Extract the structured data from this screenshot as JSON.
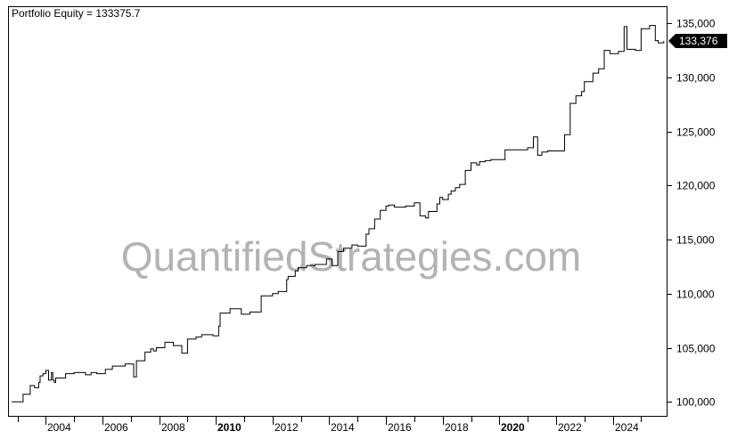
{
  "chart_data": {
    "type": "line",
    "title": "Portfolio Equity = 133375.7",
    "watermark": "QuantifiedStrategies.com",
    "last_value": 133375.7,
    "last_value_label": "133,376",
    "ylim": [
      98700,
      136500
    ],
    "xlim": [
      2002.7,
      2025.9
    ],
    "y_ticks": [
      {
        "value": 100000,
        "label": "100,000"
      },
      {
        "value": 105000,
        "label": "105,000"
      },
      {
        "value": 110000,
        "label": "110,000"
      },
      {
        "value": 115000,
        "label": "115,000"
      },
      {
        "value": 120000,
        "label": "120,000"
      },
      {
        "value": 125000,
        "label": "125,000"
      },
      {
        "value": 130000,
        "label": "130,000"
      },
      {
        "value": 135000,
        "label": "135,000"
      }
    ],
    "x_ticks": [
      {
        "value": 2004,
        "label": "2004",
        "bold": false
      },
      {
        "value": 2006,
        "label": "2006",
        "bold": false
      },
      {
        "value": 2008,
        "label": "2008",
        "bold": false
      },
      {
        "value": 2010,
        "label": "2010",
        "bold": true
      },
      {
        "value": 2012,
        "label": "2012",
        "bold": false
      },
      {
        "value": 2014,
        "label": "2014",
        "bold": false
      },
      {
        "value": 2016,
        "label": "2016",
        "bold": false
      },
      {
        "value": 2018,
        "label": "2018",
        "bold": false
      },
      {
        "value": 2020,
        "label": "2020",
        "bold": true
      },
      {
        "value": 2022,
        "label": "2022",
        "bold": false
      },
      {
        "value": 2024,
        "label": "2024",
        "bold": false
      }
    ],
    "series": [
      {
        "x": [
          2002.8,
          2003.2,
          2003.2,
          2003.45,
          2003.6,
          2003.75,
          2003.8,
          2003.9,
          2004.0,
          2004.1,
          2004.2,
          2004.25,
          2004.3,
          2004.35,
          2004.7,
          2005.0,
          2005.4,
          2005.6,
          2005.8,
          2006.1,
          2006.35,
          2006.8,
          2007.1,
          2007.2,
          2007.5,
          2007.7,
          2007.8,
          2007.9,
          2008.2,
          2008.5,
          2008.8,
          2009.0,
          2009.3,
          2009.5,
          2009.9,
          2010.1,
          2010.15,
          2010.5,
          2010.9,
          2011.2,
          2011.6,
          2012.0,
          2012.2,
          2012.5,
          2012.55,
          2012.8,
          2012.9,
          2013.2,
          2013.5,
          2013.6,
          2013.9,
          2014.1,
          2014.3,
          2014.5,
          2014.8,
          2015.0,
          2015.3,
          2015.4,
          2015.6,
          2015.8,
          2016.0,
          2016.1,
          2016.3,
          2016.4,
          2016.7,
          2017.0,
          2017.2,
          2017.4,
          2017.5,
          2017.8,
          2017.9,
          2018.0,
          2018.2,
          2018.3,
          2018.45,
          2018.6,
          2018.8,
          2019.0,
          2019.2,
          2019.3,
          2019.5,
          2019.7,
          2019.9,
          2020.2,
          2020.3,
          2021.0,
          2021.2,
          2021.35,
          2021.5,
          2021.7,
          2022.0,
          2022.3,
          2022.5,
          2022.7,
          2022.9,
          2023.0,
          2023.3,
          2023.5,
          2023.7,
          2023.9,
          2024.2,
          2024.4,
          2024.5,
          2024.8,
          2025.0,
          2025.3,
          2025.5,
          2025.6,
          2025.8
        ],
        "values": [
          100000,
          100000,
          100700,
          101500,
          101300,
          101800,
          102400,
          102600,
          102900,
          102000,
          102700,
          102000,
          101800,
          102200,
          102600,
          102700,
          102500,
          102700,
          102600,
          103000,
          103300,
          103500,
          102300,
          103800,
          104600,
          104900,
          104700,
          105000,
          105500,
          105200,
          104500,
          105800,
          106000,
          106200,
          106100,
          107000,
          108200,
          108600,
          108100,
          108300,
          109800,
          110000,
          110200,
          111300,
          111600,
          112100,
          112400,
          112600,
          112700,
          112700,
          113200,
          112600,
          113900,
          114200,
          114500,
          114400,
          115500,
          116000,
          116900,
          117700,
          118100,
          118200,
          118000,
          118000,
          118100,
          118400,
          117200,
          117000,
          117600,
          118300,
          118900,
          118700,
          119200,
          119500,
          119800,
          120100,
          121400,
          122100,
          121900,
          122200,
          122300,
          122400,
          122400,
          123300,
          123300,
          123500,
          124500,
          122800,
          123100,
          123200,
          123200,
          124700,
          127600,
          128300,
          128700,
          129600,
          130400,
          130800,
          132500,
          132200,
          132400,
          134700,
          132600,
          132500,
          134500,
          134800,
          133400,
          133200,
          133376
        ]
      }
    ],
    "grid": false,
    "colors": {
      "line": "#000000",
      "label_bg": "#000000",
      "label_text": "#ffffff",
      "watermark": "#b3b3b3"
    }
  }
}
